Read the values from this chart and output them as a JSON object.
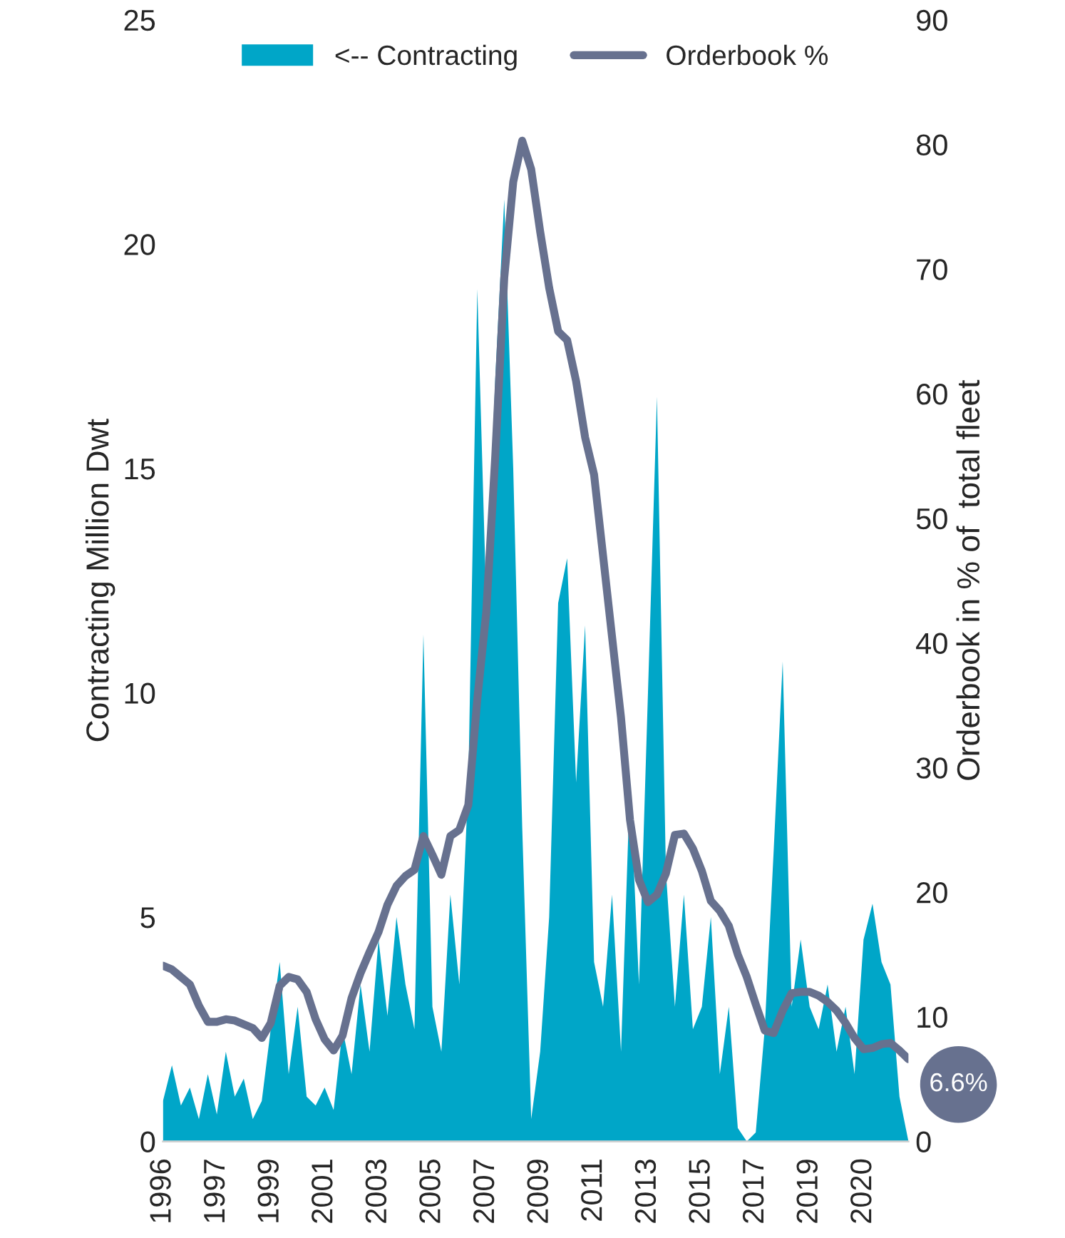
{
  "chart_data": {
    "type": "area",
    "categories": [
      "1996",
      null,
      null,
      null,
      null,
      null,
      "1997",
      null,
      null,
      null,
      null,
      null,
      "1999",
      null,
      null,
      null,
      null,
      null,
      "2001",
      null,
      null,
      null,
      null,
      null,
      "2003",
      null,
      null,
      null,
      null,
      null,
      "2005",
      null,
      null,
      null,
      null,
      null,
      "2007",
      null,
      null,
      null,
      null,
      null,
      "2009",
      null,
      null,
      null,
      null,
      null,
      "2011",
      null,
      null,
      null,
      null,
      null,
      "2013",
      null,
      null,
      null,
      null,
      null,
      "2015",
      null,
      null,
      null,
      null,
      null,
      "2017",
      null,
      null,
      null,
      null,
      null,
      "2019",
      null,
      null,
      null,
      null,
      null,
      "2020",
      null,
      null,
      null,
      null,
      null
    ],
    "series": [
      {
        "name": "<-- Contracting",
        "color": "#00a6c8",
        "values": [
          0.9,
          1.7,
          0.8,
          1.2,
          0.5,
          1.5,
          0.6,
          2.0,
          1.0,
          1.4,
          0.5,
          0.9,
          2.5,
          4.0,
          1.5,
          3.0,
          1.0,
          0.8,
          1.2,
          0.7,
          2.5,
          1.5,
          3.5,
          2.0,
          4.5,
          2.8,
          5.0,
          3.5,
          2.5,
          11.3,
          3.0,
          2.0,
          5.5,
          3.5,
          8.0,
          19.0,
          12.0,
          17.0,
          21.0,
          15.0,
          7.0,
          0.5,
          2.0,
          5.0,
          12.0,
          13.0,
          8.0,
          11.5,
          4.0,
          3.0,
          5.5,
          2.0,
          8.0,
          3.5,
          10.0,
          16.6,
          6.0,
          3.0,
          5.5,
          2.5,
          3.0,
          5.0,
          1.5,
          3.0,
          0.3,
          0.0,
          0.2,
          2.5,
          6.5,
          10.7,
          3.0,
          4.5,
          3.0,
          2.5,
          3.5,
          2.0,
          3.0,
          1.5,
          4.5,
          5.3,
          4.0,
          3.5,
          1.0,
          0.0
        ]
      },
      {
        "name": "Orderbook %",
        "type": "line",
        "axis": "y2",
        "color": "#67718f",
        "values": [
          14.1,
          13.8,
          13.2,
          12.6,
          10.9,
          9.6,
          9.6,
          9.8,
          9.7,
          9.4,
          9.1,
          8.3,
          9.5,
          12.5,
          13.2,
          13.0,
          12.0,
          9.8,
          8.2,
          7.3,
          8.5,
          11.5,
          13.5,
          15.2,
          16.8,
          19.0,
          20.5,
          21.3,
          21.8,
          24.5,
          23.0,
          21.4,
          24.5,
          25.0,
          27.0,
          35.5,
          42.5,
          55.0,
          69.3,
          77.0,
          80.3,
          78.0,
          73.0,
          68.5,
          65.0,
          64.3,
          61.0,
          56.5,
          53.5,
          47.0,
          40.5,
          34.0,
          25.8,
          21.0,
          19.2,
          19.8,
          21.5,
          24.6,
          24.7,
          23.5,
          21.7,
          19.3,
          18.5,
          17.3,
          15.0,
          13.2,
          11.0,
          8.9,
          8.7,
          10.5,
          11.9,
          12.0,
          12.0,
          11.7,
          11.2,
          10.5,
          9.5,
          8.3,
          7.4,
          7.5,
          7.8,
          7.9,
          7.3,
          6.6
        ]
      }
    ],
    "ylabel": "Contracting Million Dwt",
    "y2label": "Orderbook in % of  total fleet",
    "ylim": [
      0,
      25
    ],
    "yticks": [
      0,
      5,
      10,
      15,
      20,
      25
    ],
    "y2lim": [
      0,
      90
    ],
    "y2ticks": [
      0,
      10,
      20,
      30,
      40,
      50,
      60,
      70,
      80,
      90
    ],
    "annotations": [
      "6.6%"
    ],
    "legend": "top",
    "grid": false
  }
}
